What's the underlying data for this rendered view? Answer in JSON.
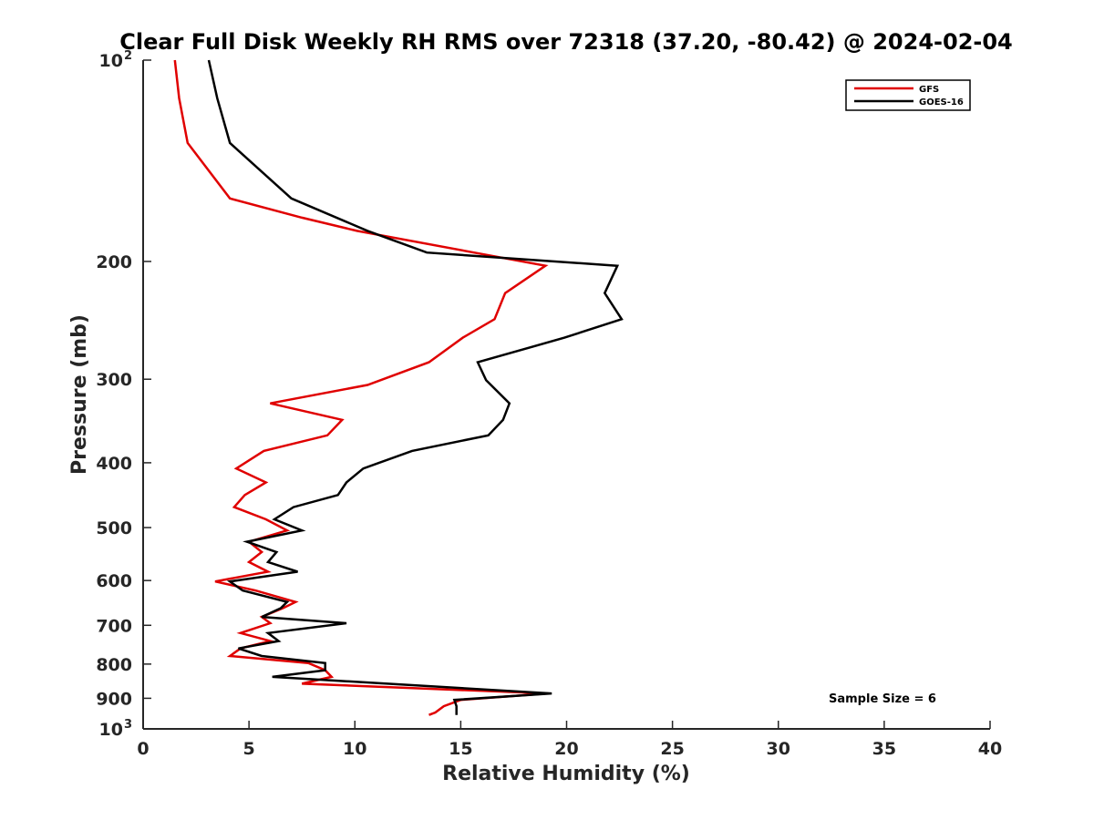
{
  "chart_data": {
    "type": "line",
    "title": "Clear Full Disk Weekly RH RMS over 72318 (37.20, -80.42) @ 2024-02-04",
    "xlabel": "Relative Humidity (%)",
    "ylabel": "Pressure (mb)",
    "xlim": [
      0,
      40
    ],
    "ylim": [
      100,
      1000
    ],
    "yscale": "log",
    "yaxis_reversed": true,
    "x_ticks": [
      0,
      5,
      10,
      15,
      20,
      25,
      30,
      35,
      40
    ],
    "y_ticks": [
      {
        "value": 100,
        "label": "10",
        "sup": "2"
      },
      {
        "value": 200,
        "label": "200"
      },
      {
        "value": 300,
        "label": "300"
      },
      {
        "value": 400,
        "label": "400"
      },
      {
        "value": 500,
        "label": "500"
      },
      {
        "value": 600,
        "label": "600"
      },
      {
        "value": 700,
        "label": "700"
      },
      {
        "value": 800,
        "label": "800"
      },
      {
        "value": 900,
        "label": "900"
      },
      {
        "value": 1000,
        "label": "10",
        "sup": "3"
      }
    ],
    "grid": false,
    "legend_position": "top-right",
    "annotation": "Sample Size = 6",
    "series": [
      {
        "name": "GFS",
        "color": "#e00000",
        "points": [
          [
            1.5,
            100
          ],
          [
            1.7,
            114
          ],
          [
            2.1,
            133
          ],
          [
            4.1,
            161
          ],
          [
            7.5,
            172
          ],
          [
            10.1,
            180
          ],
          [
            19.0,
            203
          ],
          [
            17.1,
            223
          ],
          [
            16.6,
            244
          ],
          [
            15.1,
            260
          ],
          [
            13.5,
            283
          ],
          [
            10.6,
            306
          ],
          [
            6.0,
            326
          ],
          [
            9.4,
            345
          ],
          [
            8.7,
            364
          ],
          [
            5.7,
            384
          ],
          [
            4.4,
            408
          ],
          [
            5.8,
            428
          ],
          [
            4.8,
            447
          ],
          [
            4.3,
            466
          ],
          [
            5.8,
            486
          ],
          [
            6.8,
            505
          ],
          [
            5.0,
            525
          ],
          [
            5.6,
            544
          ],
          [
            5.0,
            563
          ],
          [
            5.9,
            582
          ],
          [
            3.4,
            602
          ],
          [
            5.3,
            621
          ],
          [
            7.2,
            646
          ],
          [
            6.6,
            660
          ],
          [
            5.6,
            680
          ],
          [
            6.0,
            695
          ],
          [
            4.6,
            719
          ],
          [
            6.0,
            739
          ],
          [
            4.6,
            758
          ],
          [
            4.1,
            778
          ],
          [
            7.8,
            797
          ],
          [
            8.6,
            817
          ],
          [
            8.9,
            836
          ],
          [
            7.5,
            856
          ],
          [
            19.1,
            885
          ],
          [
            15.0,
            905
          ],
          [
            14.2,
            925
          ],
          [
            13.8,
            945
          ],
          [
            13.5,
            953
          ]
        ]
      },
      {
        "name": "GOES-16",
        "color": "#000000",
        "points": [
          [
            3.1,
            100
          ],
          [
            3.5,
            114
          ],
          [
            4.1,
            133
          ],
          [
            7.0,
            161
          ],
          [
            10.6,
            180
          ],
          [
            13.4,
            194
          ],
          [
            22.4,
            203
          ],
          [
            21.8,
            223
          ],
          [
            22.6,
            244
          ],
          [
            19.9,
            260
          ],
          [
            15.8,
            283
          ],
          [
            16.2,
            301
          ],
          [
            17.3,
            326
          ],
          [
            17.0,
            345
          ],
          [
            16.3,
            364
          ],
          [
            12.7,
            384
          ],
          [
            10.4,
            408
          ],
          [
            9.6,
            428
          ],
          [
            9.2,
            447
          ],
          [
            7.1,
            466
          ],
          [
            6.2,
            486
          ],
          [
            7.5,
            505
          ],
          [
            4.9,
            525
          ],
          [
            6.3,
            544
          ],
          [
            5.9,
            563
          ],
          [
            7.3,
            582
          ],
          [
            4.1,
            602
          ],
          [
            4.7,
            621
          ],
          [
            6.8,
            646
          ],
          [
            6.5,
            660
          ],
          [
            5.6,
            680
          ],
          [
            9.6,
            695
          ],
          [
            5.9,
            719
          ],
          [
            6.4,
            739
          ],
          [
            4.5,
            758
          ],
          [
            5.6,
            778
          ],
          [
            8.6,
            797
          ],
          [
            8.6,
            817
          ],
          [
            6.1,
            836
          ],
          [
            19.3,
            885
          ],
          [
            14.7,
            905
          ],
          [
            14.8,
            925
          ],
          [
            14.8,
            953
          ]
        ]
      }
    ]
  }
}
